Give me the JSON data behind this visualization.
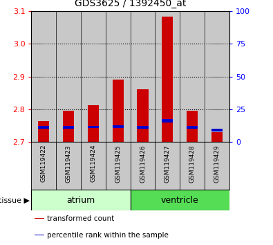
{
  "title": "GDS3625 / 1392450_at",
  "samples": [
    "GSM119422",
    "GSM119423",
    "GSM119424",
    "GSM119425",
    "GSM119426",
    "GSM119427",
    "GSM119428",
    "GSM119429"
  ],
  "baseline": 2.7,
  "red_tops": [
    2.765,
    2.795,
    2.812,
    2.89,
    2.862,
    3.082,
    2.795,
    2.73
  ],
  "blue_tops": [
    2.745,
    2.745,
    2.746,
    2.747,
    2.745,
    2.765,
    2.745,
    2.736
  ],
  "blue_heights": [
    0.008,
    0.008,
    0.008,
    0.008,
    0.008,
    0.01,
    0.008,
    0.008
  ],
  "ylim_left": [
    2.7,
    3.1
  ],
  "ylim_right": [
    0,
    100
  ],
  "yticks_left": [
    2.7,
    2.8,
    2.9,
    3.0,
    3.1
  ],
  "yticks_right": [
    0,
    25,
    50,
    75,
    100
  ],
  "bar_width": 0.45,
  "red_color": "#cc0000",
  "blue_color": "#0000cc",
  "col_bg_color": "#c8c8c8",
  "plot_bg": "#ffffff",
  "left_tick_color": "red",
  "right_tick_color": "blue",
  "legend_items": [
    {
      "color": "#cc0000",
      "label": "transformed count"
    },
    {
      "color": "#0000cc",
      "label": "percentile rank within the sample"
    }
  ],
  "atrium_color": "#ccffcc",
  "ventricle_color": "#55dd55",
  "n_atrium": 4,
  "n_ventricle": 4,
  "gridline_color": "#000000"
}
